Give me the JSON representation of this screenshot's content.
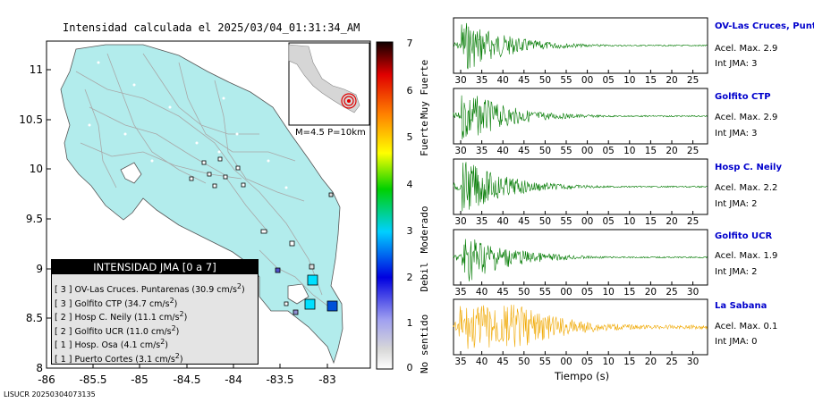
{
  "map": {
    "title": "Intensidad calculada el 2025/03/04_01:31:34_AM",
    "lat_ticks": [
      "11",
      "10.5",
      "10",
      "9.5",
      "9",
      "8.5",
      "8"
    ],
    "lon_ticks": [
      "-86",
      "-85.5",
      "-85",
      "-84.5",
      "-84",
      "-83.5",
      "-83"
    ],
    "inset_caption": "M=4.5 P=10km",
    "colors": {
      "land": "#b2ecec",
      "sea": "#ffffff",
      "roads": "#a8a8a8"
    }
  },
  "legend": {
    "title": "INTENSIDAD JMA [0 a 7]",
    "items": [
      {
        "int": "[ 3 ]",
        "name": "OV-Las Cruces. Puntarenas (30.9 cm/s",
        "sup": "2",
        "close": ")"
      },
      {
        "int": "[ 3 ]",
        "name": "Golfito CTP (34.7 cm/s",
        "sup": "2",
        "close": ")"
      },
      {
        "int": "[ 2 ]",
        "name": "Hosp C. Neily (11.1 cm/s",
        "sup": "2",
        "close": ")"
      },
      {
        "int": "[ 2 ]",
        "name": "Golfito UCR (11.0 cm/s",
        "sup": "2",
        "close": ")"
      },
      {
        "int": "[ 1 ]",
        "name": "Hosp. Osa (4.1 cm/s",
        "sup": "2",
        "close": ")"
      },
      {
        "int": "[ 1 ]",
        "name": "Puerto Cortes (3.1 cm/s",
        "sup": "2",
        "close": ")"
      }
    ]
  },
  "colorbar": {
    "numbers": [
      "7",
      "6",
      "5",
      "4",
      "3",
      "2",
      "1",
      "0"
    ],
    "words": [
      "Muy Fuerte",
      "Fuerte",
      "Moderado",
      "Debil",
      "No sentido"
    ]
  },
  "stations": [
    {
      "name": "OV-Las Cruces, Puntar",
      "acel": "Acel. Max. 2.9",
      "int": "Int JMA: 3",
      "ticks": [
        "30",
        "35",
        "40",
        "45",
        "50",
        "55",
        "00",
        "05",
        "10",
        "15",
        "20",
        "25"
      ],
      "color": "#007a00"
    },
    {
      "name": "Golfito CTP",
      "acel": "Acel. Max. 2.9",
      "int": "Int JMA: 3",
      "ticks": [
        "30",
        "35",
        "40",
        "45",
        "50",
        "55",
        "00",
        "05",
        "10",
        "15",
        "20",
        "25",
        "30"
      ],
      "color": "#007a00"
    },
    {
      "name": "Hosp C. Neily",
      "acel": "Acel. Max. 2.2",
      "int": "Int JMA: 2",
      "ticks": [
        "30",
        "35",
        "40",
        "45",
        "50",
        "55",
        "00",
        "05",
        "10",
        "15",
        "20",
        "25"
      ],
      "color": "#007a00"
    },
    {
      "name": "Golfito UCR",
      "acel": "Acel. Max. 1.9",
      "int": "Int JMA: 2",
      "ticks": [
        "35",
        "40",
        "45",
        "50",
        "55",
        "00",
        "05",
        "10",
        "15",
        "20",
        "25",
        "30"
      ],
      "color": "#007a00"
    },
    {
      "name": "La Sabana",
      "acel": "Acel. Max. 0.1",
      "int": "Int JMA: 0",
      "ticks": [
        "35",
        "40",
        "45",
        "50",
        "55",
        "00",
        "05",
        "10",
        "15",
        "20",
        "25",
        "30"
      ],
      "color": "#f0a800"
    }
  ],
  "xaxis_label": "Tiempo (s)",
  "footer": "LISUCR 20250304073135"
}
